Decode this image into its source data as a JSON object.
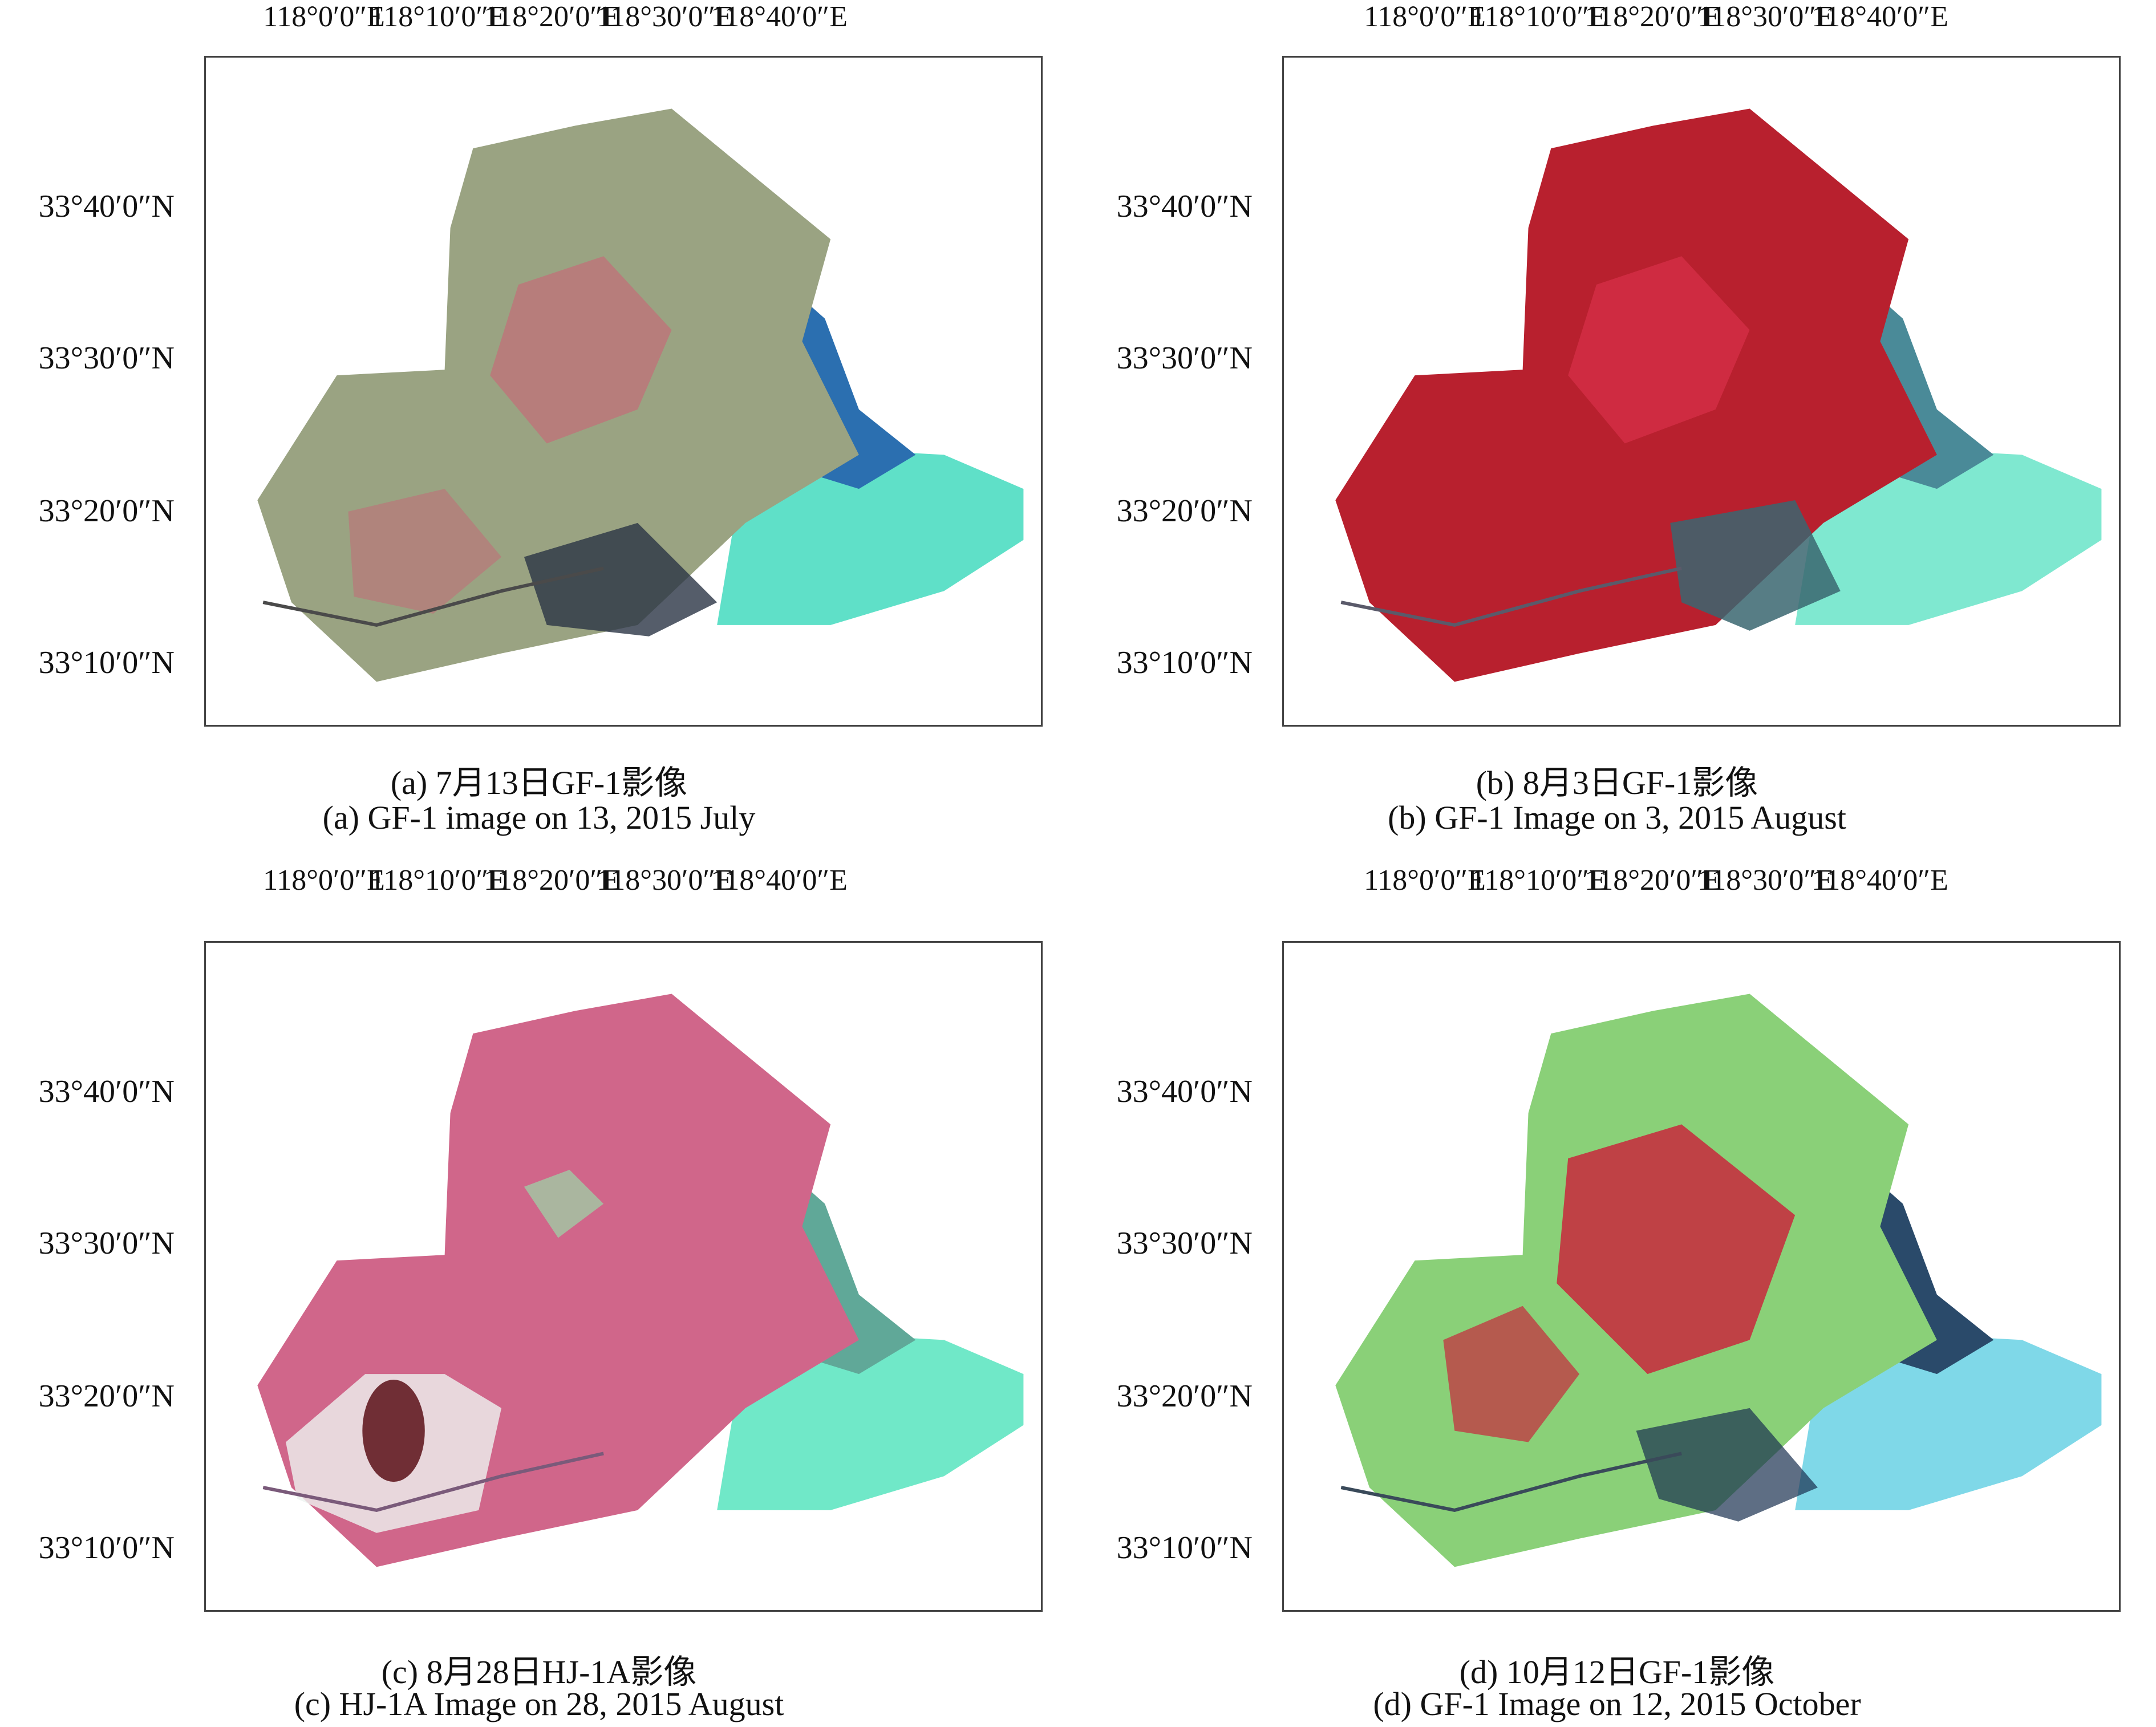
{
  "panels": [
    {
      "id": "a",
      "lon_labels": [
        "118°0′0″E",
        "118°10′0″E",
        "118°20′0″E",
        "118°30′0″E",
        "118°40′0″E"
      ],
      "lat_labels": [
        "33°40′0″N",
        "33°30′0″N",
        "33°20′0″N",
        "33°10′0″N"
      ],
      "caption_cn": "(a) 7月13日GF-1影像",
      "caption_en": "(a) GF-1 image on 13, 2015 July",
      "colors": {
        "land": "#9aa382",
        "field": "#c07078",
        "water": "#2b6fb0",
        "sea": "#5fe0c8",
        "shadow": "#2a3545"
      }
    },
    {
      "id": "b",
      "lon_labels": [
        "118°0′0″E",
        "118°10′0″E",
        "118°20′0″E",
        "118°30′0″E",
        "118°40′0″E"
      ],
      "lat_labels": [
        "33°40′0″N",
        "33°30′0″N",
        "33°20′0″N",
        "33°10′0″N"
      ],
      "caption_cn": "(b) 8月3日GF-1影像",
      "caption_en": "(b) GF-1 Image on 3, 2015 August",
      "colors": {
        "land": "#b8202e",
        "field": "#d8304a",
        "water": "#4a8a98",
        "sea": "#7fe8d0",
        "shadow": "#3a6670"
      }
    },
    {
      "id": "c",
      "lon_labels": [
        "118°0′0″E",
        "118°10′0″E",
        "118°20′0″E",
        "118°30′0″E",
        "118°40′0″E"
      ],
      "lat_labels": [
        "33°40′0″N",
        "33°30′0″N",
        "33°20′0″N",
        "33°10′0″N"
      ],
      "caption_cn": "(c) 8月28日HJ-1A影像",
      "caption_en": "(c) HJ-1A Image on 28, 2015 August",
      "colors": {
        "land": "#d0668a",
        "field": "#9ad8a8",
        "water": "#60a898",
        "sea": "#70e8c8",
        "shadow": "#5a1018"
      }
    },
    {
      "id": "d",
      "lon_labels": [
        "118°0′0″E",
        "118°10′0″E",
        "118°20′0″E",
        "118°30′0″E",
        "118°40′0″E"
      ],
      "lat_labels": [
        "33°40′0″N",
        "33°30′0″N",
        "33°20′0″N",
        "33°10′0″N"
      ],
      "caption_cn": "(d) 10月12日GF-1影像",
      "caption_en": "(d) GF-1 Image on 12, 2015 October",
      "colors": {
        "land": "#8ad078",
        "field": "#c8283c",
        "water": "#2a4a6a",
        "sea": "#7fd8e8",
        "shadow": "#1a3050"
      }
    }
  ]
}
